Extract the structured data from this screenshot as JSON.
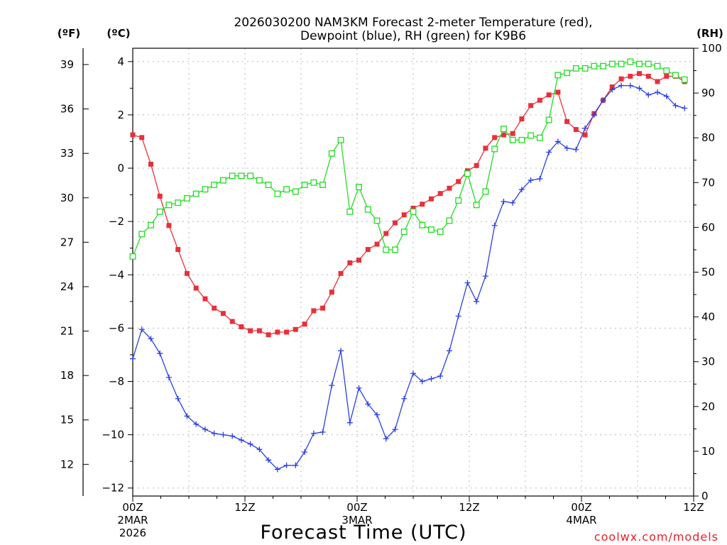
{
  "chart_data": {
    "type": "line",
    "title_line1": "2026030200 NAM3KM Forecast 2-meter Temperature (red),",
    "title_line2": "Dewpoint (blue), RH (green) for K9B6",
    "xlabel": "Forecast Time (UTC)",
    "source": "coolwx.com/models",
    "units": {
      "left_outer": "(ºF)",
      "left_inner": "(ºC)",
      "right": "(RH)"
    },
    "x_range_hours": [
      0,
      60
    ],
    "y_celsius_range": [
      -12.3,
      4.5
    ],
    "y_rh_range": [
      0,
      100
    ],
    "x_ticks": [
      {
        "hour": 0,
        "label": "00Z",
        "sub1": "2MAR",
        "sub2": "2026"
      },
      {
        "hour": 12,
        "label": "12Z",
        "sub1": "",
        "sub2": ""
      },
      {
        "hour": 24,
        "label": "00Z",
        "sub1": "3MAR",
        "sub2": ""
      },
      {
        "hour": 36,
        "label": "12Z",
        "sub1": "",
        "sub2": ""
      },
      {
        "hour": 48,
        "label": "00Z",
        "sub1": "4MAR",
        "sub2": ""
      },
      {
        "hour": 60,
        "label": "12Z",
        "sub1": "",
        "sub2": ""
      }
    ],
    "y_celsius_ticks": [
      4,
      2,
      0,
      -2,
      -4,
      -6,
      -8,
      -10,
      -12
    ],
    "y_celsius_tick_labels": [
      "4",
      "2",
      "0",
      "−2",
      "−4",
      "−6",
      "−8",
      "−10",
      "−12"
    ],
    "y_fahrenheit_ticks": [
      39,
      36,
      33,
      30,
      27,
      24,
      21,
      18,
      15,
      12
    ],
    "y_rh_ticks": [
      100,
      90,
      80,
      70,
      60,
      50,
      40,
      30,
      20,
      10,
      0
    ],
    "series": [
      {
        "name": "Temperature",
        "unit": "C",
        "color": "#e8303a",
        "marker": "filled-square",
        "values": [
          1.25,
          1.15,
          0.15,
          -1.05,
          -2.15,
          -3.05,
          -3.95,
          -4.5,
          -4.9,
          -5.25,
          -5.45,
          -5.75,
          -5.95,
          -6.1,
          -6.1,
          -6.25,
          -6.15,
          -6.15,
          -6.05,
          -5.85,
          -5.35,
          -5.25,
          -4.65,
          -3.95,
          -3.55,
          -3.45,
          -3.05,
          -2.85,
          -2.45,
          -2.05,
          -1.75,
          -1.5,
          -1.35,
          -1.15,
          -0.95,
          -0.75,
          -0.5,
          -0.1,
          0.1,
          0.75,
          1.15,
          1.25,
          1.3,
          1.85,
          2.35,
          2.55,
          2.75,
          2.85,
          1.75,
          1.45,
          1.25,
          2.05,
          2.55,
          3.05,
          3.35,
          3.45,
          3.55,
          3.45,
          3.25,
          3.45,
          3.45,
          3.25
        ]
      },
      {
        "name": "Dewpoint",
        "unit": "C",
        "color": "#2b3fe0",
        "marker": "plus",
        "values": [
          -7.15,
          -6.05,
          -6.4,
          -6.95,
          -7.85,
          -8.65,
          -9.3,
          -9.6,
          -9.8,
          -9.95,
          -10.0,
          -10.05,
          -10.2,
          -10.35,
          -10.55,
          -10.95,
          -11.3,
          -11.15,
          -11.15,
          -10.65,
          -9.95,
          -9.9,
          -8.15,
          -6.85,
          -9.55,
          -8.25,
          -8.85,
          -9.25,
          -10.15,
          -9.8,
          -8.65,
          -7.7,
          -8.0,
          -7.9,
          -7.8,
          -6.85,
          -5.55,
          -4.3,
          -5.0,
          -4.05,
          -2.15,
          -1.25,
          -1.3,
          -0.8,
          -0.45,
          -0.4,
          0.6,
          1.0,
          0.75,
          0.7,
          1.5,
          2.0,
          2.55,
          2.95,
          3.1,
          3.1,
          3.0,
          2.75,
          2.85,
          2.7,
          2.35,
          2.25
        ]
      },
      {
        "name": "RH",
        "unit": "%",
        "color": "#22dd22",
        "marker": "open-square",
        "values": [
          53.5,
          58.5,
          60.5,
          63.5,
          65,
          65.5,
          66.5,
          67.5,
          68.5,
          69.5,
          70.5,
          71.5,
          71.5,
          71.5,
          70.5,
          69.5,
          67.5,
          68.5,
          68.0,
          69.5,
          70.0,
          69.5,
          76.5,
          79.5,
          63.5,
          69.0,
          64.0,
          61.5,
          55.0,
          55.0,
          59.0,
          63.5,
          60.5,
          59.5,
          59.0,
          61.5,
          66.0,
          72.0,
          65.0,
          68.0,
          77.5,
          82.0,
          79.5,
          79.5,
          80.5,
          80.0,
          84.0,
          94.0,
          94.5,
          95.5,
          95.5,
          96.0,
          96.0,
          96.5,
          96.5,
          97.0,
          96.5,
          96.5,
          96.0,
          95.0,
          94.0,
          93.0
        ]
      }
    ]
  }
}
